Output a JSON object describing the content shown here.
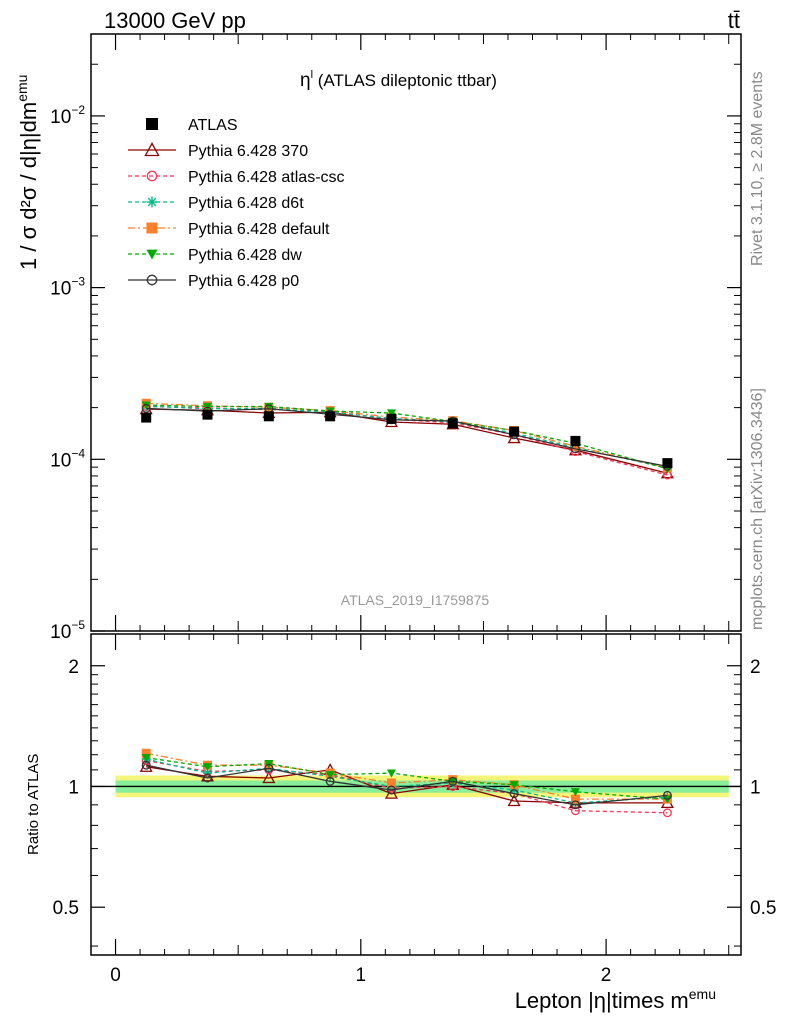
{
  "header": {
    "energy_label": "13000 GeV pp",
    "process_label": "tt̄"
  },
  "side_labels": {
    "rivet": "Rivet 3.1.10, ≥ 2.8M events",
    "mcplots": "mcplots.cern.ch [arXiv:1306.3436]"
  },
  "plot_title": {
    "main": "η",
    "sup": "l",
    "rest": " (ATLAS dileptonic ttbar)"
  },
  "watermark": "ATLAS_2019_I1759875",
  "chart_data": {
    "type": "scatter",
    "xlabel": "Lepton |η|times m",
    "xlabel_sup": "emu",
    "ylabel_main": "1 / σ  d²σ / d|η|dm",
    "ylabel_main_sup": "emu",
    "ylabel_ratio": "Ratio to ATLAS",
    "x_range": [
      -0.1,
      2.55
    ],
    "y_main_range": [
      1e-05,
      0.03
    ],
    "y_main_log": true,
    "y_ratio_range": [
      0.38,
      2.4
    ],
    "y_ratio_log": true,
    "x_ticks": [
      {
        "value": 0,
        "label": "0"
      },
      {
        "value": 1,
        "label": "1"
      },
      {
        "value": 2,
        "label": "2"
      }
    ],
    "y_main_ticks": [
      {
        "value": 1e-05,
        "base": "10",
        "exp": "−5"
      },
      {
        "value": 0.0001,
        "base": "10",
        "exp": "−4"
      },
      {
        "value": 0.001,
        "base": "10",
        "exp": "−3"
      },
      {
        "value": 0.01,
        "base": "10",
        "exp": "−2"
      }
    ],
    "y_ratio_ticks": [
      {
        "value": 0.5,
        "label": "0.5"
      },
      {
        "value": 1,
        "label": "1"
      },
      {
        "value": 2,
        "label": "2"
      }
    ],
    "x": [
      0.125,
      0.375,
      0.625,
      0.875,
      1.125,
      1.375,
      1.625,
      1.875,
      2.25
    ],
    "x_bin_edges": [
      0,
      0.25,
      0.5,
      0.75,
      1.0,
      1.25,
      1.5,
      1.75,
      2.0,
      2.5
    ],
    "data": {
      "name": "ATLAS",
      "values": [
        0.000175,
        0.000182,
        0.000178,
        0.000178,
        0.000172,
        0.000162,
        0.000145,
        0.000128,
        9.5e-05
      ],
      "ratio_band_inner": [
        0.965,
        1.035
      ],
      "ratio_band_outer": [
        0.94,
        1.065
      ]
    },
    "series": [
      {
        "name": "Pythia 6.428 370",
        "color": "#8b0000",
        "marker": "triangle-open",
        "dash": "solid",
        "values": [
          0.000196,
          0.000193,
          0.000186,
          0.000188,
          0.000165,
          0.00016,
          0.000133,
          0.000113,
          8.3e-05
        ],
        "ratio": [
          1.12,
          1.06,
          1.05,
          1.1,
          0.96,
          1.01,
          0.92,
          0.91,
          0.91
        ]
      },
      {
        "name": "Pythia 6.428 atlas-csc",
        "color": "#ff3355",
        "marker": "circle-open",
        "dash": "dashed",
        "values": [
          0.000203,
          0.000199,
          0.000195,
          0.000191,
          0.000171,
          0.000163,
          0.000139,
          0.000111,
          8.1e-05
        ],
        "ratio": [
          1.16,
          1.09,
          1.1,
          1.07,
          0.99,
          1.0,
          0.96,
          0.87,
          0.86
        ]
      },
      {
        "name": "Pythia 6.428 d6t",
        "color": "#00bb88",
        "marker": "star",
        "dash": "dashed",
        "values": [
          0.000204,
          0.000197,
          0.000198,
          0.000188,
          0.000173,
          0.000165,
          0.000142,
          0.000117,
          8.9e-05
        ],
        "ratio": [
          1.17,
          1.08,
          1.11,
          1.06,
          1.0,
          1.02,
          0.98,
          0.91,
          0.94
        ]
      },
      {
        "name": "Pythia 6.428 default",
        "color": "#ff7f2a",
        "marker": "square-filled",
        "dash": "dashdot",
        "values": [
          0.000212,
          0.000205,
          0.000201,
          0.000192,
          0.000176,
          0.000168,
          0.000147,
          0.000119,
          8.9e-05
        ],
        "ratio": [
          1.21,
          1.13,
          1.13,
          1.08,
          1.02,
          1.04,
          1.01,
          0.93,
          0.93
        ]
      },
      {
        "name": "Pythia 6.428 dw",
        "color": "#00aa00",
        "marker": "triangle-down-filled",
        "dash": "dashed",
        "values": [
          0.000207,
          0.000203,
          0.000203,
          0.000191,
          0.000186,
          0.000166,
          0.000147,
          0.000124,
          8.8e-05
        ],
        "ratio": [
          1.18,
          1.12,
          1.14,
          1.07,
          1.08,
          1.03,
          1.01,
          0.97,
          0.93
        ]
      },
      {
        "name": "Pythia 6.428 p0",
        "color": "#333333",
        "marker": "circle-open",
        "dash": "solid",
        "values": [
          0.000198,
          0.000191,
          0.000197,
          0.000183,
          0.00017,
          0.000167,
          0.000139,
          0.000115,
          9.1e-05
        ],
        "ratio": [
          1.13,
          1.05,
          1.11,
          1.03,
          0.98,
          1.03,
          0.96,
          0.9,
          0.95
        ]
      }
    ]
  }
}
